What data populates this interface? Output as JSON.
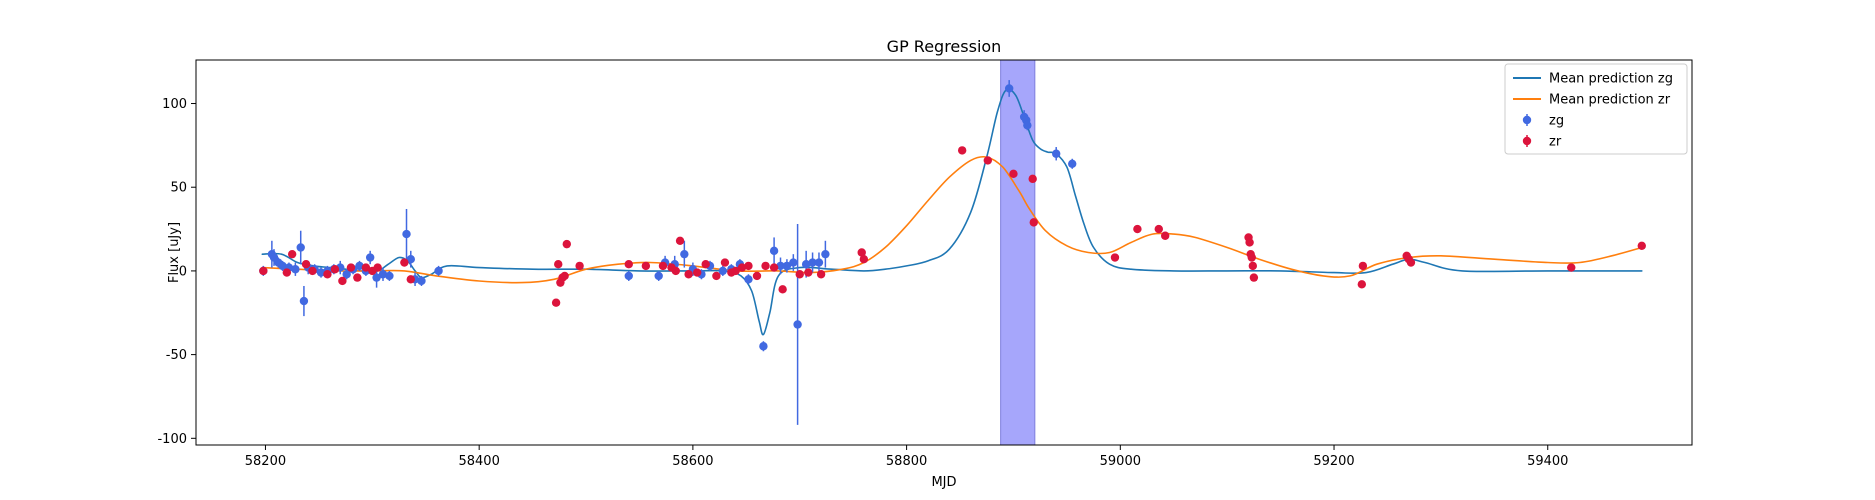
{
  "chart_data": {
    "type": "scatter",
    "title": "GP Regression",
    "xlabel": "MJD",
    "ylabel": "Flux [uJy]",
    "xlim": [
      58135,
      59535
    ],
    "ylim": [
      -104,
      126
    ],
    "xticks": [
      58200,
      58400,
      58600,
      58800,
      59000,
      59200,
      59400
    ],
    "yticks": [
      -100,
      -50,
      0,
      50,
      100
    ],
    "grid": false,
    "legend_position": "top-right",
    "highlight_band": {
      "x0": 58888,
      "x1": 58920,
      "color": "#a6a6fb"
    },
    "series": [
      {
        "name": "Mean prediction zg",
        "kind": "line",
        "color": "#1f77b4",
        "x": [
          58197,
          58215,
          58230,
          58245,
          58260,
          58275,
          58290,
          58305,
          58315,
          58325,
          58333,
          58340,
          58346,
          58355,
          58370,
          58400,
          58450,
          58500,
          58550,
          58600,
          58630,
          58645,
          58655,
          58662,
          58666,
          58672,
          58680,
          58700,
          58730,
          58760,
          58780,
          58800,
          58820,
          58840,
          58860,
          58875,
          58885,
          58893,
          58902,
          58910,
          58918,
          58925,
          58932,
          58940,
          58950,
          58958,
          58966,
          58975,
          58990,
          59010,
          59050,
          59100,
          59150,
          59200,
          59230,
          59255,
          59270,
          59285,
          59320,
          59400,
          59488
        ],
        "y": [
          10,
          10,
          5,
          3,
          2,
          1,
          0,
          0,
          4,
          8,
          6,
          0,
          -4,
          -2,
          3,
          2,
          1,
          1,
          0,
          0,
          0,
          -3,
          -12,
          -30,
          -38,
          -25,
          -3,
          2,
          1,
          0,
          1,
          3,
          6,
          13,
          35,
          68,
          95,
          108,
          105,
          92,
          78,
          73,
          71,
          70,
          62,
          45,
          28,
          14,
          4,
          1,
          0,
          0,
          0,
          -1,
          -1,
          4,
          7,
          5,
          0,
          0,
          0
        ]
      },
      {
        "name": "Mean prediction zr",
        "kind": "line",
        "color": "#ff7f0e",
        "x": [
          58197,
          58230,
          58270,
          58300,
          58330,
          58360,
          58400,
          58440,
          58470,
          58500,
          58530,
          58560,
          58600,
          58640,
          58680,
          58710,
          58740,
          58760,
          58780,
          58800,
          58820,
          58840,
          58860,
          58875,
          58890,
          58905,
          58915,
          58930,
          58950,
          58970,
          58990,
          59010,
          59030,
          59050,
          59070,
          59100,
          59130,
          59160,
          59190,
          59215,
          59240,
          59270,
          59300,
          59350,
          59400,
          59430,
          59460,
          59488
        ],
        "y": [
          2,
          1,
          0,
          0,
          0,
          -3,
          -6,
          -7,
          -5,
          1,
          4,
          5,
          3,
          0,
          0,
          -1,
          1,
          5,
          14,
          27,
          42,
          56,
          66,
          68,
          62,
          48,
          37,
          24,
          15,
          11,
          11,
          17,
          22,
          22,
          20,
          14,
          7,
          1,
          -3,
          -3,
          4,
          8,
          9,
          7,
          5,
          5,
          9,
          14
        ]
      },
      {
        "name": "zg",
        "kind": "points",
        "color": "#4169e1",
        "x": [
          58198,
          58206,
          58208,
          58212,
          58216,
          58222,
          58228,
          58233,
          58236,
          58240,
          58246,
          58252,
          58258,
          58264,
          58270,
          58276,
          58282,
          58288,
          58294,
          58298,
          58304,
          58310,
          58316,
          58332,
          58336,
          58340,
          58346,
          58362,
          58540,
          58568,
          58574,
          58583,
          58592,
          58600,
          58608,
          58616,
          58628,
          58636,
          58644,
          58652,
          58666,
          58676,
          58682,
          58688,
          58694,
          58698,
          58706,
          58712,
          58718,
          58724
        ],
        "y": [
          0,
          10,
          8,
          5,
          3,
          2,
          1,
          14,
          -18,
          2,
          1,
          -1,
          0,
          1,
          2,
          -2,
          1,
          3,
          0,
          8,
          -4,
          -2,
          -3,
          22,
          7,
          -5,
          -6,
          0,
          -3,
          -3,
          5,
          4,
          10,
          1,
          -2,
          3,
          0,
          1,
          4,
          -5,
          -45,
          12,
          3,
          3,
          5,
          -32,
          4,
          5,
          5,
          10
        ],
        "err": [
          3,
          8,
          5,
          3,
          3,
          3,
          4,
          10,
          9,
          4,
          3,
          3,
          3,
          3,
          4,
          3,
          3,
          3,
          3,
          4,
          6,
          4,
          3,
          15,
          5,
          4,
          3,
          3,
          3,
          3,
          4,
          5,
          8,
          4,
          3,
          3,
          3,
          3,
          3,
          3,
          3,
          8,
          5,
          4,
          5,
          60,
          8,
          6,
          6,
          8
        ]
      },
      {
        "name": "",
        "kind": "points",
        "color": "#4169e1",
        "x": [
          58896,
          58910,
          58912,
          58913,
          58940,
          58955
        ],
        "y": [
          109,
          92,
          90,
          87,
          70,
          64
        ],
        "err": [
          5,
          4,
          3,
          3,
          4,
          3
        ]
      },
      {
        "name": "zr",
        "kind": "points",
        "color": "#dc143c",
        "x": [
          58198,
          58220,
          58225,
          58238,
          58244,
          58258,
          58265,
          58272,
          58280,
          58286,
          58294,
          58300,
          58305,
          58330,
          58336,
          58472,
          58474,
          58476,
          58478,
          58480,
          58482,
          58494,
          58540,
          58556,
          58572,
          58580,
          58584,
          58588,
          58596,
          58604,
          58612,
          58622,
          58630,
          58636,
          58640,
          58646,
          58652,
          58660,
          58668,
          58676,
          58684,
          58700,
          58708,
          58720,
          58758,
          58760,
          58852,
          58876,
          58900,
          58918,
          58919,
          58995,
          59016,
          59036,
          59042,
          59120,
          59121,
          59122,
          59123,
          59124,
          59125,
          59226,
          59227,
          59268,
          59270,
          59272,
          59422,
          59488
        ],
        "y": [
          0,
          -1,
          10,
          4,
          0,
          -2,
          1,
          -6,
          2,
          -4,
          2,
          0,
          2,
          5,
          -5,
          -19,
          4,
          -7,
          -4,
          -3,
          16,
          3,
          4,
          3,
          3,
          2,
          0,
          18,
          -2,
          -1,
          4,
          -3,
          5,
          -1,
          0,
          2,
          3,
          -3,
          3,
          2,
          -11,
          -2,
          -1,
          -2,
          11,
          7,
          72,
          66,
          58,
          55,
          29,
          8,
          25,
          25,
          21,
          20,
          17,
          10,
          8,
          3,
          -4,
          -8,
          3,
          9,
          7,
          5,
          2,
          15
        ]
      }
    ]
  }
}
